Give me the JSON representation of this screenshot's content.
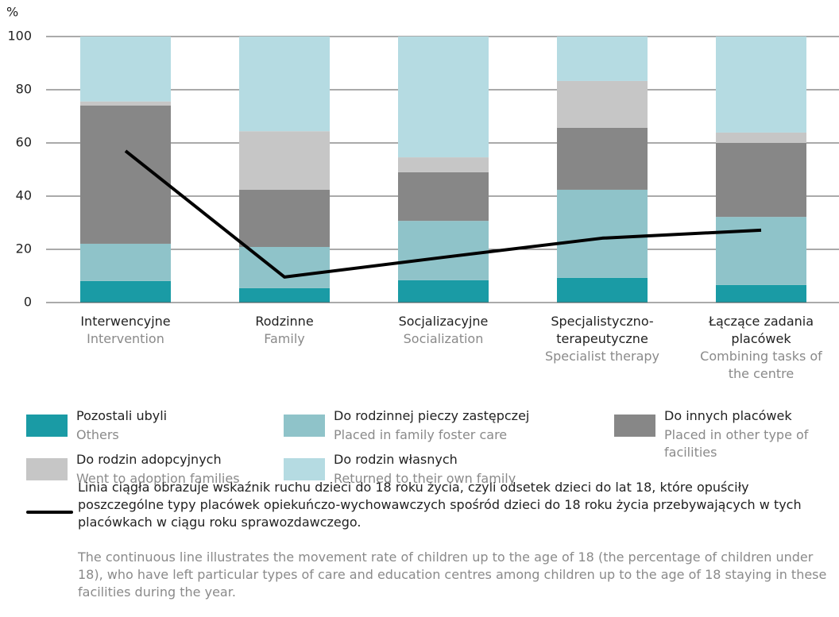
{
  "chart_data": {
    "type": "stacked-bar-line",
    "y_axis_label": "%",
    "categories": [
      "Interwencyjne",
      "Rodzinne",
      "Socjalizacyjne",
      "Specjalistyczno-terapeutyczne",
      "Łączące zadania placówek"
    ],
    "categories_en": [
      "Intervention",
      "Family",
      "Socialization",
      "Specialist therapy",
      "Combining tasks of the centre"
    ],
    "series": [
      {
        "name": "Pozostali ubyli",
        "name_en": "Others",
        "color": "#1a9ba5",
        "values": [
          8.1,
          5.4,
          8.4,
          9.3,
          6.6
        ]
      },
      {
        "name": "Do rodzinnej pieczy zastępczej",
        "name_en": "Placed in family foster care",
        "color": "#8fc3c9",
        "values": [
          14,
          15.5,
          22.3,
          33.1,
          25.6
        ]
      },
      {
        "name": "Do innych placówek",
        "name_en": "Placed in other type of facilities",
        "color": "#878787",
        "values": [
          52,
          21.5,
          18.3,
          23.3,
          27.8
        ]
      },
      {
        "name": "Do rodzin adopcyjnych",
        "name_en": "Went to adoption families",
        "color": "#c6c6c6",
        "values": [
          1.5,
          22,
          5.6,
          17.6,
          3.9
        ]
      },
      {
        "name": "Do rodzin własnych",
        "name_en": "Returned to their own family",
        "color": "#b5dbe2",
        "values": [
          24.4,
          35.6,
          45.4,
          16.7,
          36.1
        ]
      }
    ],
    "line": {
      "color": "#000000",
      "values": [
        57,
        9.6,
        17,
        24.2,
        27.2
      ]
    },
    "note": "Linia ciągła obrazuje wskaźnik ruchu dzieci do 18 roku życia, czyli odsetek dzieci do lat 18, które opuściły poszczególne typy placówek opiekuńczo-wychowawczych spośród dzieci do 18 roku życia przebywających w tych placówkach w ciągu roku sprawozdawczego.",
    "note_en": "The continuous line illustrates the movement rate of children up to the age of 18 (the percentage of children under 18), who have left particular types of care and education centres among children up to the age of 18 staying in these facilities during the year.",
    "ylim": [
      0,
      100
    ],
    "yticks": [
      0,
      20,
      40,
      60,
      80,
      100
    ],
    "grid": true
  }
}
